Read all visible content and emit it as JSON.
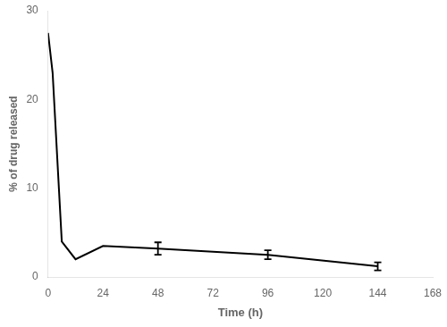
{
  "chart_data": {
    "type": "line",
    "x": [
      0,
      2,
      6,
      12,
      24,
      48,
      96,
      144
    ],
    "values": [
      27.5,
      23.0,
      4.0,
      2.0,
      3.5,
      3.2,
      2.5,
      1.2
    ],
    "yerr": [
      0,
      0,
      0,
      0,
      0,
      0.7,
      0.5,
      0.45
    ],
    "xlabel": "Time (h)",
    "ylabel": "% of drug released",
    "xlim": [
      0,
      168
    ],
    "ylim": [
      0,
      30
    ],
    "xticks": [
      0,
      24,
      48,
      72,
      96,
      120,
      144,
      168
    ],
    "yticks": [
      0,
      10,
      20,
      30
    ],
    "color": "#000000",
    "grid": false
  }
}
